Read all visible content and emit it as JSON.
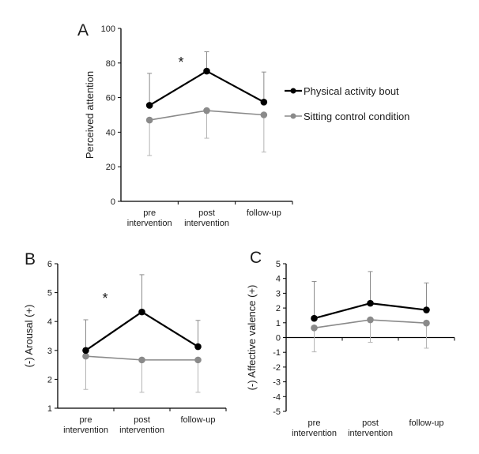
{
  "colors": {
    "series_active": "#000000",
    "series_control": "#8a8a8a",
    "error_active": "#8c8c8c",
    "error_control": "#b5b5b5",
    "axis": "#000000"
  },
  "legend": {
    "items": [
      {
        "label": "Physical activity bout",
        "series": "active"
      },
      {
        "label": "Sitting control condition",
        "series": "control"
      }
    ],
    "placement": "right of panel A"
  },
  "chart_data": [
    {
      "id": "A",
      "panel_label": "A",
      "type": "line",
      "title": "",
      "xlabel": "",
      "ylabel": "Perceived attention",
      "categories": [
        [
          "pre",
          "intervention"
        ],
        [
          "post",
          "intervention"
        ],
        [
          "follow-up"
        ]
      ],
      "ylim": [
        0,
        100
      ],
      "yticks": [
        0,
        20,
        40,
        60,
        80,
        100
      ],
      "grid": false,
      "series": [
        {
          "name": "Physical activity bout",
          "key": "active",
          "values": [
            55.5,
            75.3,
            57.4
          ],
          "error_upper": [
            74,
            86.5,
            74.8
          ],
          "error_lower": [
            null,
            null,
            null
          ]
        },
        {
          "name": "Sitting control condition",
          "key": "control",
          "values": [
            47,
            52.5,
            50
          ],
          "error_upper": [
            null,
            null,
            null
          ],
          "error_lower": [
            26.5,
            36.5,
            28.5
          ]
        }
      ],
      "annotations": [
        {
          "text": "*",
          "between": [
            0,
            1
          ]
        }
      ]
    },
    {
      "id": "B",
      "panel_label": "B",
      "type": "line",
      "title": "",
      "xlabel": "",
      "ylabel": "(-)  Arousal  (+)",
      "categories": [
        [
          "pre",
          "intervention"
        ],
        [
          "post",
          "intervention"
        ],
        [
          "follow-up"
        ]
      ],
      "ylim": [
        1,
        6
      ],
      "yticks": [
        1,
        2,
        3,
        4,
        5,
        6
      ],
      "grid": false,
      "series": [
        {
          "name": "Physical activity bout",
          "key": "active",
          "values": [
            3.0,
            4.33,
            3.13
          ],
          "error_upper": [
            4.06,
            5.62,
            4.04
          ],
          "error_lower": [
            null,
            null,
            null
          ]
        },
        {
          "name": "Sitting control condition",
          "key": "control",
          "values": [
            2.8,
            2.67,
            2.67
          ],
          "error_upper": [
            null,
            null,
            null
          ],
          "error_lower": [
            1.65,
            1.55,
            1.55
          ]
        }
      ],
      "annotations": [
        {
          "text": "*",
          "between": [
            0,
            1
          ]
        }
      ]
    },
    {
      "id": "C",
      "panel_label": "C",
      "type": "line",
      "title": "",
      "xlabel": "",
      "ylabel": "(-)  Affective valence  (+)",
      "categories": [
        [
          "pre",
          "intervention"
        ],
        [
          "post",
          "intervention"
        ],
        [
          "follow-up"
        ]
      ],
      "ylim": [
        -5,
        5
      ],
      "yticks": [
        -5,
        -4,
        -3,
        -2,
        -1,
        0,
        1,
        2,
        3,
        4,
        5
      ],
      "grid": false,
      "series": [
        {
          "name": "Physical activity bout",
          "key": "active",
          "values": [
            1.3,
            2.32,
            1.87
          ],
          "error_upper": [
            3.8,
            4.47,
            3.7
          ],
          "error_lower": [
            null,
            null,
            null
          ]
        },
        {
          "name": "Sitting control condition",
          "key": "control",
          "values": [
            0.65,
            1.2,
            0.98
          ],
          "error_upper": [
            null,
            null,
            null
          ],
          "error_lower": [
            -0.97,
            -0.32,
            -0.72
          ]
        }
      ],
      "annotations": []
    }
  ]
}
